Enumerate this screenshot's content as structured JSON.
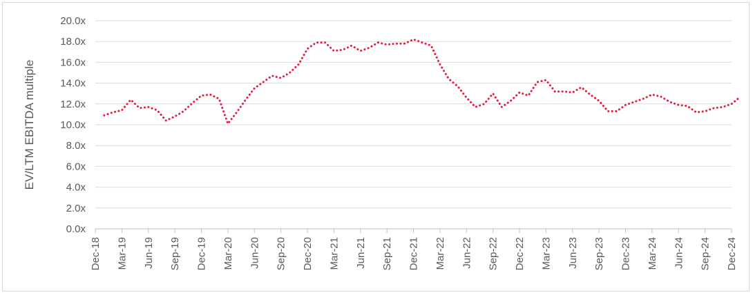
{
  "chart_data": {
    "type": "line",
    "ylabel": "EV/LTM EBITDA multiple",
    "ylim": [
      0,
      20
    ],
    "y_ticks": [
      "0.0x",
      "2.0x",
      "4.0x",
      "6.0x",
      "8.0x",
      "10.0x",
      "12.0x",
      "14.0x",
      "16.0x",
      "18.0x",
      "20.0x"
    ],
    "x_ticks": [
      "Dec-18",
      "Mar-19",
      "Jun-19",
      "Sep-19",
      "Dec-19",
      "Mar-20",
      "Jun-20",
      "Sep-20",
      "Dec-20",
      "Mar-21",
      "Jun-21",
      "Sep-21",
      "Dec-21",
      "Mar-22",
      "Jun-22",
      "Sep-22",
      "Dec-22",
      "Mar-23",
      "Jun-23",
      "Sep-23",
      "Dec-23",
      "Mar-24",
      "Jun-24",
      "Sep-24",
      "Dec-24"
    ],
    "grid": true,
    "line_color": "#e8193c",
    "line_style": "dotted",
    "series": [
      {
        "x": [
          "Jan-19",
          "Feb-19",
          "Mar-19",
          "Apr-19",
          "May-19",
          "Jun-19",
          "Jul-19",
          "Aug-19",
          "Sep-19",
          "Oct-19",
          "Nov-19",
          "Dec-19",
          "Jan-20",
          "Feb-20",
          "Mar-20",
          "Apr-20",
          "May-20",
          "Jun-20",
          "Jul-20",
          "Aug-20",
          "Sep-20",
          "Oct-20",
          "Nov-20",
          "Dec-20",
          "Jan-21",
          "Feb-21",
          "Mar-21",
          "Apr-21",
          "May-21",
          "Jun-21",
          "Jul-21",
          "Aug-21",
          "Sep-21",
          "Oct-21",
          "Nov-21",
          "Dec-21",
          "Jan-22",
          "Feb-22",
          "Mar-22",
          "Apr-22",
          "May-22",
          "Jun-22",
          "Jul-22",
          "Aug-22",
          "Sep-22",
          "Oct-22",
          "Nov-22",
          "Dec-22",
          "Jan-23",
          "Feb-23",
          "Mar-23",
          "Apr-23",
          "May-23",
          "Jun-23",
          "Jul-23",
          "Aug-23",
          "Sep-23",
          "Oct-23",
          "Nov-23",
          "Dec-23",
          "Jan-24",
          "Feb-24",
          "Mar-24",
          "Apr-24",
          "May-24",
          "Jun-24",
          "Jul-24",
          "Aug-24",
          "Sep-24",
          "Oct-24",
          "Nov-24",
          "Dec-24",
          "Jan-25"
        ],
        "values": [
          10.9,
          11.2,
          11.4,
          12.4,
          11.6,
          11.7,
          11.4,
          10.4,
          10.8,
          11.3,
          12.1,
          12.8,
          12.9,
          12.5,
          10.1,
          11.2,
          12.4,
          13.5,
          14.1,
          14.7,
          14.5,
          15.0,
          15.8,
          17.3,
          17.9,
          17.9,
          17.1,
          17.2,
          17.6,
          17.1,
          17.4,
          17.9,
          17.7,
          17.8,
          17.8,
          18.2,
          17.9,
          17.6,
          15.8,
          14.4,
          13.7,
          12.6,
          11.7,
          12.0,
          13.0,
          11.7,
          12.3,
          13.1,
          12.8,
          14.1,
          14.3,
          13.2,
          13.2,
          13.1,
          13.6,
          12.9,
          12.3,
          11.3,
          11.3,
          11.9,
          12.2,
          12.5,
          12.9,
          12.7,
          12.2,
          11.9,
          11.8,
          11.2,
          11.3,
          11.6,
          11.7,
          12.0,
          12.7
        ]
      }
    ]
  }
}
